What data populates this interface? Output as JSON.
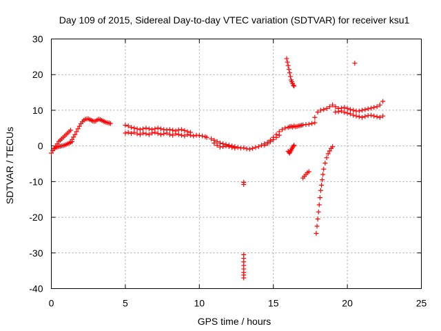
{
  "chart_data": {
    "type": "scatter",
    "title": "Day 109 of 2015, Sidereal Day-to-day VTEC variation (SDTVAR) for receiver ksu1",
    "xlabel": "GPS time / hours",
    "ylabel": "SDTVAR / TECUs",
    "xlim": [
      0,
      25
    ],
    "ylim": [
      -40,
      30
    ],
    "grid": true,
    "marker": "+",
    "marker_color": "#ff0000",
    "x_ticks": [
      0,
      5,
      10,
      15,
      20,
      25
    ],
    "x_tick_labels": [
      "0",
      "5",
      "10",
      "15",
      "20",
      "25"
    ],
    "y_ticks": [
      -40,
      -30,
      -20,
      -10,
      0,
      10,
      20,
      30
    ],
    "y_tick_labels": [
      "-40",
      "-30",
      "-20",
      "-10",
      "0",
      "10",
      "20",
      "30"
    ],
    "series": [
      {
        "name": "arc-a",
        "x": [
          0.0,
          0.1,
          0.2,
          0.3,
          0.4,
          0.5,
          0.6,
          0.7,
          0.8,
          0.9,
          1.0,
          1.1,
          1.2,
          1.3
        ],
        "y": [
          -2.0,
          -1.3,
          -0.6,
          0.0,
          0.6,
          1.2,
          1.6,
          2.0,
          2.4,
          2.8,
          3.2,
          3.6,
          4.0,
          4.4
        ]
      },
      {
        "name": "arc-b",
        "x": [
          0.2,
          0.3,
          0.4,
          0.5,
          0.6,
          0.7,
          0.8,
          0.9,
          1.0,
          1.1,
          1.2,
          1.3,
          1.4
        ],
        "y": [
          -0.8,
          -0.4,
          -0.3,
          -0.2,
          -0.1,
          0.0,
          0.1,
          0.2,
          0.4,
          0.6,
          0.8,
          1.0,
          1.2
        ]
      },
      {
        "name": "arc-c",
        "x": [
          1.4,
          1.5,
          1.6,
          1.7,
          1.8,
          1.9,
          2.0,
          2.1,
          2.2,
          2.3,
          2.4,
          2.5,
          2.6,
          2.7,
          2.8,
          2.9,
          3.0,
          3.1,
          3.2,
          3.3,
          3.4,
          3.5,
          3.6,
          3.7,
          3.8,
          3.9,
          4.0
        ],
        "y": [
          1.8,
          2.5,
          3.2,
          4.0,
          4.8,
          5.5,
          6.2,
          6.8,
          7.2,
          7.5,
          7.6,
          7.6,
          7.4,
          7.2,
          7.0,
          6.9,
          7.0,
          7.3,
          7.5,
          7.4,
          7.2,
          7.0,
          6.8,
          6.6,
          6.5,
          6.4,
          6.3
        ]
      },
      {
        "name": "arc-d",
        "x": [
          5.0,
          5.2,
          5.4,
          5.6,
          5.8,
          6.0,
          6.2,
          6.4,
          6.6,
          6.8,
          7.0,
          7.2,
          7.4,
          7.6,
          7.8,
          8.0,
          8.2,
          8.4,
          8.6,
          8.8,
          9.0,
          9.2,
          9.4
        ],
        "y": [
          5.8,
          5.6,
          5.2,
          5.0,
          4.8,
          4.6,
          4.8,
          5.0,
          4.8,
          4.6,
          4.8,
          5.0,
          4.8,
          4.6,
          4.5,
          4.6,
          4.4,
          4.2,
          4.5,
          4.6,
          4.3,
          4.0,
          3.8
        ]
      },
      {
        "name": "arc-e",
        "x": [
          5.0,
          5.2,
          5.4,
          5.6,
          5.8,
          6.0,
          6.2,
          6.4,
          6.6,
          6.8,
          7.0,
          7.2,
          7.4,
          7.6,
          7.8,
          8.0,
          8.2,
          8.4,
          8.6,
          8.8,
          9.0,
          9.2,
          9.4,
          9.6,
          9.8,
          10.0,
          10.2,
          10.4
        ],
        "y": [
          3.6,
          3.8,
          3.5,
          3.8,
          3.4,
          3.2,
          3.6,
          3.4,
          3.2,
          3.6,
          3.8,
          3.5,
          3.2,
          3.4,
          3.6,
          3.2,
          3.0,
          3.4,
          3.2,
          3.0,
          2.8,
          3.2,
          3.0,
          2.8,
          3.0,
          2.9,
          2.8,
          2.6
        ]
      },
      {
        "name": "arc-f",
        "x": [
          10.5,
          10.8,
          11.0,
          11.2,
          11.4,
          11.6,
          11.8,
          12.0,
          12.2,
          12.4,
          12.6,
          12.8,
          13.0,
          13.2,
          13.4,
          13.6,
          13.8,
          14.0,
          14.2,
          14.4,
          14.6,
          14.8,
          15.0,
          15.2,
          15.4,
          15.6,
          15.8
        ],
        "y": [
          2.4,
          2.0,
          1.6,
          1.2,
          0.8,
          0.6,
          0.4,
          0.2,
          0.0,
          -0.2,
          -0.4,
          -0.6,
          -0.5,
          -0.8,
          -0.9,
          -0.7,
          -0.4,
          -0.2,
          0.2,
          0.6,
          1.0,
          1.6,
          2.4,
          3.2,
          4.0,
          4.6,
          5.0
        ]
      },
      {
        "name": "arc-g",
        "x": [
          11.0,
          11.2,
          11.4,
          11.6,
          11.8,
          12.0,
          12.2,
          12.4
        ],
        "y": [
          0.8,
          0.2,
          -0.3,
          -0.2,
          0.0,
          -0.2,
          -0.4,
          -0.6
        ]
      },
      {
        "name": "arc-h",
        "x": [
          14.4,
          14.6,
          14.8,
          15.0,
          15.2,
          15.4
        ],
        "y": [
          0.2,
          0.6,
          1.2,
          1.8,
          2.4,
          3.0
        ]
      },
      {
        "name": "arc-i",
        "x": [
          16.0,
          16.1,
          16.2,
          16.3,
          16.4,
          16.5,
          16.6,
          16.7,
          16.8,
          16.9,
          17.0,
          17.2,
          17.4,
          17.6,
          17.8
        ],
        "y": [
          5.2,
          5.4,
          5.5,
          5.3,
          5.6,
          5.4,
          5.5,
          5.6,
          5.7,
          5.8,
          5.9,
          6.0,
          6.1,
          6.3,
          6.5
        ]
      },
      {
        "name": "arc-j",
        "x": [
          17.8,
          18.0,
          18.2,
          18.4,
          18.6,
          18.8,
          19.0,
          19.2,
          19.4,
          19.6,
          19.8,
          20.0,
          20.2,
          20.4,
          20.6,
          20.8,
          21.0,
          21.2,
          21.4,
          21.6,
          21.8,
          22.0,
          22.2,
          22.4
        ],
        "y": [
          8.0,
          9.5,
          10.0,
          10.2,
          10.5,
          11.0,
          11.5,
          11.0,
          10.5,
          10.6,
          10.8,
          10.5,
          10.2,
          10.0,
          9.8,
          9.8,
          10.0,
          10.2,
          10.4,
          10.6,
          10.8,
          11.0,
          11.5,
          12.5
        ]
      },
      {
        "name": "arc-k",
        "x": [
          19.2,
          19.4,
          19.6,
          19.8,
          20.0,
          20.2,
          20.4,
          20.6,
          20.8,
          21.0,
          21.2,
          21.4,
          21.6,
          21.8,
          22.0,
          22.2,
          22.4
        ],
        "y": [
          9.5,
          9.6,
          9.8,
          9.4,
          9.2,
          9.0,
          8.6,
          8.4,
          8.2,
          8.0,
          8.3,
          8.5,
          8.6,
          8.4,
          8.2,
          8.0,
          8.4
        ]
      },
      {
        "name": "arc-l",
        "x": [
          15.9,
          15.95,
          16.0,
          16.05,
          16.1,
          16.15,
          16.2,
          16.25,
          16.3,
          16.35,
          16.4
        ],
        "y": [
          24.5,
          23.5,
          22.5,
          21.5,
          20.5,
          19.5,
          18.5,
          18.0,
          17.5,
          17.0,
          16.8
        ]
      },
      {
        "name": "arc-m",
        "x": [
          16.0,
          16.05,
          16.1,
          16.15,
          16.2,
          16.25,
          16.3,
          16.35,
          16.4
        ],
        "y": [
          -1.5,
          -1.8,
          -2.0,
          -1.6,
          -1.2,
          -0.8,
          -0.4,
          -0.1,
          0.2
        ]
      },
      {
        "name": "arc-n",
        "x": [
          17.0,
          17.1,
          17.2,
          17.3,
          17.4
        ],
        "y": [
          -9.0,
          -8.5,
          -8.0,
          -7.5,
          -7.2
        ]
      },
      {
        "name": "arc-o",
        "x": [
          17.9,
          17.95,
          18.0,
          18.05,
          18.1,
          18.15,
          18.2,
          18.25,
          18.3,
          18.35,
          18.4,
          18.5,
          18.6,
          18.7,
          18.8,
          18.9,
          19.0
        ],
        "y": [
          -24.5,
          -22.5,
          -20.5,
          -18.5,
          -16.5,
          -14.5,
          -12.5,
          -11.0,
          -9.5,
          -8.0,
          -6.5,
          -4.8,
          -3.3,
          -2.2,
          -1.4,
          -0.7,
          -0.2
        ]
      },
      {
        "name": "arc-p",
        "x": [
          13.0,
          13.0,
          13.0,
          13.0,
          13.0,
          13.0,
          13.0,
          13.0,
          13.0,
          13.0
        ],
        "y": [
          -10.8,
          -10.2,
          -30.5,
          -31.5,
          -32.5,
          -33.5,
          -34.5,
          -35.5,
          -36.2,
          -37.0
        ]
      },
      {
        "name": "arc-q",
        "x": [
          20.5
        ],
        "y": [
          23.2
        ]
      }
    ]
  }
}
